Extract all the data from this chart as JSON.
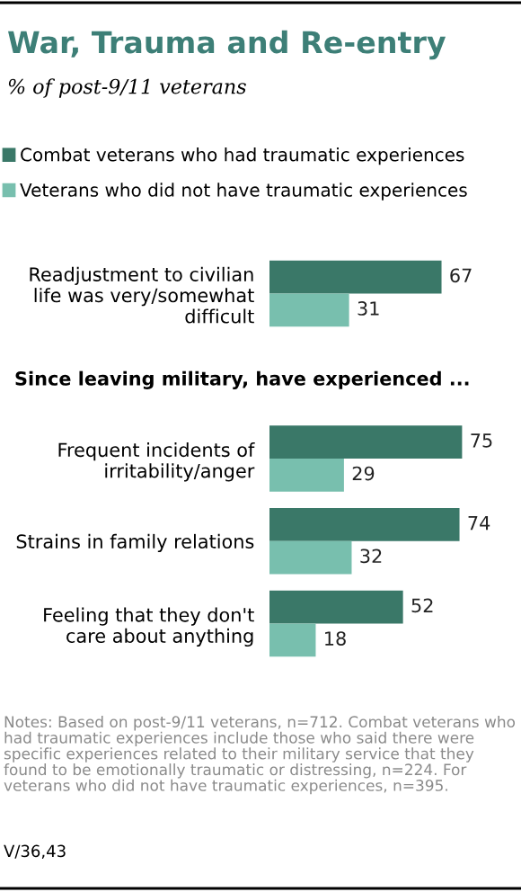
{
  "chart_data": {
    "type": "bar",
    "orientation": "horizontal",
    "title": "War, Trauma and Re-entry",
    "subtitle": "% of post-9/11 veterans",
    "categories": [
      "Readjustment to civilian\nlife was very/somewhat\ndifficult",
      "Frequent incidents of\nirritability/anger",
      "Strains in family relations",
      "Feeling that they don't\ncare about anything"
    ],
    "series": [
      {
        "name": "Combat veterans who had traumatic experiences",
        "color": "#3a7868",
        "values": [
          67,
          75,
          74,
          52
        ]
      },
      {
        "name": "Veterans who did not have traumatic experiences",
        "color": "#78bfae",
        "values": [
          31,
          29,
          32,
          18
        ]
      }
    ],
    "data_labels": true,
    "legend": "top",
    "grid": false,
    "annotations": [
      "Since leaving military, have experienced ...",
      "Notes: Based on post-9/11 veterans, n=712. Combat veterans who had traumatic experiences include those who said there were specific experiences related to their military service that they found to be emotionally traumatic or distressing, n=224. For veterans who did not have traumatic experiences, n=395.",
      "V/36,43"
    ]
  }
}
